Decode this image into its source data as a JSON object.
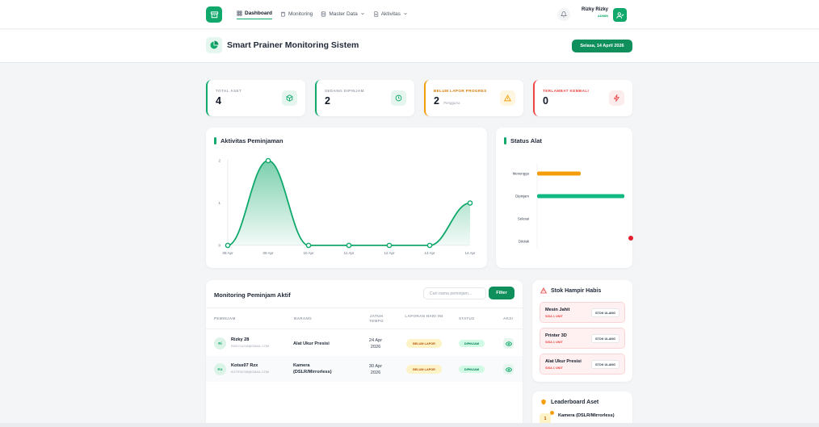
{
  "nav": {
    "items": [
      {
        "label": "Dashboard",
        "icon": "grid-icon",
        "active": true
      },
      {
        "label": "Monitoring",
        "icon": "clipboard-icon"
      },
      {
        "label": "Master Data",
        "icon": "database-icon",
        "dropdown": true
      },
      {
        "label": "Aktivitas",
        "icon": "document-icon",
        "dropdown": true
      }
    ],
    "user": {
      "name": "Rizky Rizky",
      "role": "ADMIN"
    }
  },
  "header": {
    "title": "Smart Prainer Monitoring Sistem",
    "date": "Selasa, 14 April 2026"
  },
  "stats": [
    {
      "label": "TOTAL ASET",
      "value": "4",
      "sub": "",
      "color": "#10a86b",
      "icon": "cube-icon"
    },
    {
      "label": "SEDANG DIPINJAM",
      "value": "2",
      "sub": "",
      "color": "#10a86b",
      "icon": "clock-icon"
    },
    {
      "label": "BELUM LAPOR PROGRES",
      "value": "2",
      "sub": "Pengguna",
      "color": "#f59e0b",
      "icon": "warning-icon"
    },
    {
      "label": "TERLAMBAT KEMBALI",
      "value": "0",
      "sub": "",
      "color": "#ef4444",
      "icon": "lightning-icon"
    }
  ],
  "activity": {
    "title": "Aktivitas Peminjaman"
  },
  "status": {
    "title": "Status Alat"
  },
  "chart_data": [
    {
      "type": "area",
      "title": "Aktivitas Peminjaman",
      "x": [
        "08 Apr",
        "09 Apr",
        "10 Apr",
        "11 Apr",
        "12 Apr",
        "13 Apr",
        "14 Apr"
      ],
      "values": [
        0,
        2,
        0,
        0,
        0,
        0,
        1
      ],
      "yticks": [
        "0",
        "1",
        "2"
      ],
      "ylim": [
        0,
        2
      ],
      "color": "#10a86b"
    },
    {
      "type": "bar",
      "orientation": "horizontal",
      "title": "Status Alat",
      "categories": [
        "Menunggu",
        "Dipinjam",
        "Selesai",
        "Ditolak"
      ],
      "values": [
        1,
        2,
        0,
        0
      ],
      "xlim": [
        0,
        2
      ],
      "colors": [
        "#f59e0b",
        "#10b981",
        "#10b981",
        "#ef4444"
      ]
    }
  ],
  "monitoring": {
    "title": "Monitoring Peminjam Aktif",
    "search_placeholder": "Cari nama peminjam...",
    "filter_label": "Filter",
    "columns": {
      "peminjam": "PEMINJAM",
      "barang": "BARANG",
      "jatuh_tempo": "JATUH TEMPO",
      "laporan": "LAPORAN HARI INI",
      "status": "STATUS",
      "aksi": "AKSI"
    },
    "rows": [
      {
        "initials": "Ri",
        "name": "Rizky 28",
        "email": "RIZKY11218@GMAIL.COM",
        "item": "Alat Ukur Presisi",
        "due": "24 Apr 2026",
        "report": "BELUM LAPOR",
        "status": "DIPINJAM"
      },
      {
        "initials": "Ko",
        "name": "Kotss07 Rzx",
        "email": "KOTSS0708@GMAIL.COM",
        "item": "Kamera (DSLR/Mirrorless)",
        "due": "30 Apr 2026",
        "report": "BELUM LAPOR",
        "status": "DIPINJAM"
      }
    ]
  },
  "stock": {
    "title": "Stok Hampir Habis",
    "items": [
      {
        "name": "Mesin Jahit",
        "left": "SISA 1 UNIT",
        "button": "STOK ULANG"
      },
      {
        "name": "Printer 3D",
        "left": "SISA 1 UNIT",
        "button": "STOK ULANG"
      },
      {
        "name": "Alat Ukur Presisi",
        "left": "SISA 1 UNIT",
        "button": "STOK ULANG"
      }
    ]
  },
  "leaderboard": {
    "title": "Leaderboard Aset",
    "first": {
      "rank": "1",
      "name": "Kamera (DSLR/Mirrorless)"
    }
  }
}
